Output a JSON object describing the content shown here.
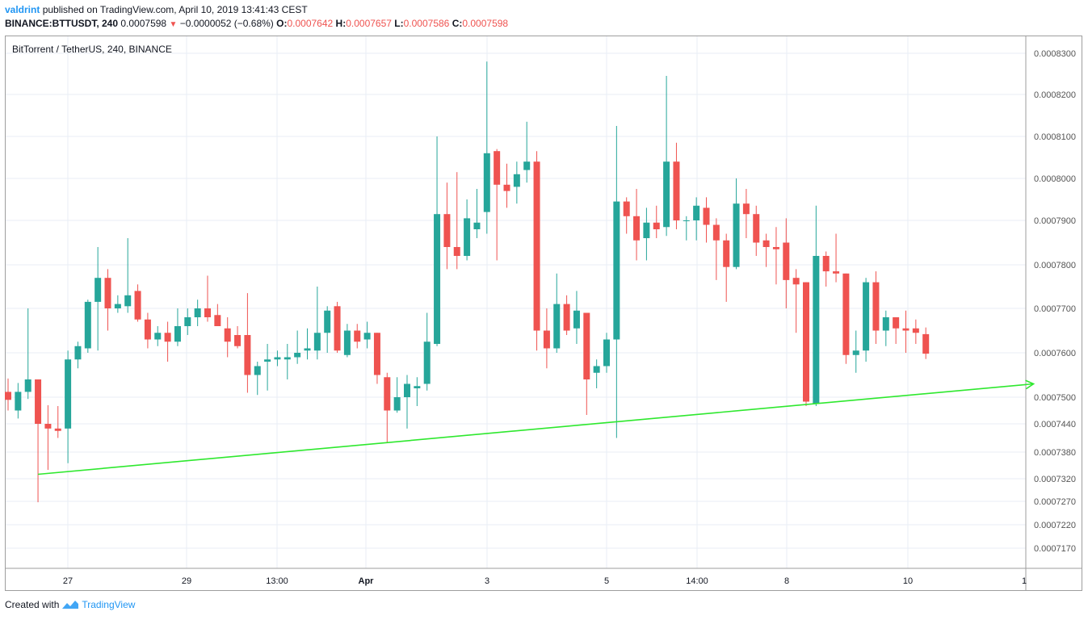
{
  "header": {
    "author": "valdrint",
    "published_text": "published on TradingView.com, April 10, 2019 13:41:43 CEST",
    "symbol_interval": "BINANCE:BTTUSDT, 240",
    "last_price": "0.0007598",
    "change": "−0.0000052 (−0.68%)",
    "o_label": "O:",
    "o_value": "0.0007642",
    "h_label": "H:",
    "h_value": "0.0007657",
    "l_label": "L:",
    "l_value": "0.0007586",
    "c_label": "C:",
    "c_value": "0.0007598"
  },
  "footer": {
    "created_with": "Created with",
    "brand": "TradingView"
  },
  "colors": {
    "up": "#26a69a",
    "down": "#ef5350",
    "trendline": "#2ee82e",
    "grid": "#e8eef5",
    "axis_text": "#555555"
  },
  "chart_data": {
    "type": "candlestick",
    "title": "BitTorrent / TetherUS, 240, BINANCE",
    "y_ticks": [
      "0.0008300",
      "0.0008200",
      "0.0008100",
      "0.0008000",
      "0.0007900",
      "0.0007800",
      "0.0007700",
      "0.0007600",
      "0.0007500",
      "0.0007440",
      "0.0007380",
      "0.0007320",
      "0.0007270",
      "0.0007220",
      "0.0007170"
    ],
    "x_ticks": [
      "27",
      "29",
      "13:00",
      "Apr",
      "3",
      "5",
      "14:00",
      "8",
      "10",
      "1"
    ],
    "x_ticks_bold": [
      "Apr"
    ],
    "grid": true,
    "candles": [
      {
        "o": 0.0007512,
        "h": 0.0007542,
        "l": 0.000747,
        "c": 0.0007494
      },
      {
        "o": 0.000747,
        "h": 0.0007532,
        "l": 0.0007452,
        "c": 0.0007512
      },
      {
        "o": 0.0007512,
        "h": 0.00077,
        "l": 0.0007496,
        "c": 0.000754
      },
      {
        "o": 0.000754,
        "h": 0.000754,
        "l": 0.0007268,
        "c": 0.000744
      },
      {
        "o": 0.000744,
        "h": 0.0007482,
        "l": 0.000734,
        "c": 0.000743
      },
      {
        "o": 0.000743,
        "h": 0.000748,
        "l": 0.000741,
        "c": 0.0007425
      },
      {
        "o": 0.000743,
        "h": 0.0007605,
        "l": 0.0007355,
        "c": 0.0007585
      },
      {
        "o": 0.0007585,
        "h": 0.0007625,
        "l": 0.0007565,
        "c": 0.0007615
      },
      {
        "o": 0.000761,
        "h": 0.000772,
        "l": 0.00076,
        "c": 0.0007715
      },
      {
        "o": 0.0007715,
        "h": 0.000784,
        "l": 0.0007605,
        "c": 0.000777
      },
      {
        "o": 0.000777,
        "h": 0.000779,
        "l": 0.000765,
        "c": 0.00077
      },
      {
        "o": 0.00077,
        "h": 0.000773,
        "l": 0.000769,
        "c": 0.000771
      },
      {
        "o": 0.0007705,
        "h": 0.000786,
        "l": 0.000769,
        "c": 0.000773
      },
      {
        "o": 0.000774,
        "h": 0.0007755,
        "l": 0.000767,
        "c": 0.0007675
      },
      {
        "o": 0.0007675,
        "h": 0.000769,
        "l": 0.000761,
        "c": 0.000763
      },
      {
        "o": 0.000763,
        "h": 0.000766,
        "l": 0.0007615,
        "c": 0.0007645
      },
      {
        "o": 0.0007645,
        "h": 0.000767,
        "l": 0.000758,
        "c": 0.0007625
      },
      {
        "o": 0.0007625,
        "h": 0.00077,
        "l": 0.0007615,
        "c": 0.000766
      },
      {
        "o": 0.000766,
        "h": 0.00077,
        "l": 0.000764,
        "c": 0.000768
      },
      {
        "o": 0.000768,
        "h": 0.000772,
        "l": 0.000766,
        "c": 0.00077
      },
      {
        "o": 0.00077,
        "h": 0.0007775,
        "l": 0.000767,
        "c": 0.000768
      },
      {
        "o": 0.0007685,
        "h": 0.000771,
        "l": 0.000766,
        "c": 0.000766
      },
      {
        "o": 0.0007655,
        "h": 0.000768,
        "l": 0.000759,
        "c": 0.0007625
      },
      {
        "o": 0.000764,
        "h": 0.000766,
        "l": 0.000761,
        "c": 0.0007615
      },
      {
        "o": 0.000764,
        "h": 0.0007735,
        "l": 0.000751,
        "c": 0.000755
      },
      {
        "o": 0.000755,
        "h": 0.000758,
        "l": 0.0007505,
        "c": 0.000757
      },
      {
        "o": 0.000758,
        "h": 0.000762,
        "l": 0.0007515,
        "c": 0.0007585
      },
      {
        "o": 0.0007585,
        "h": 0.0007605,
        "l": 0.000757,
        "c": 0.000759
      },
      {
        "o": 0.0007585,
        "h": 0.000762,
        "l": 0.000754,
        "c": 0.000759
      },
      {
        "o": 0.000759,
        "h": 0.000765,
        "l": 0.0007575,
        "c": 0.00076
      },
      {
        "o": 0.0007605,
        "h": 0.0007655,
        "l": 0.0007585,
        "c": 0.000761
      },
      {
        "o": 0.0007605,
        "h": 0.000775,
        "l": 0.0007585,
        "c": 0.0007645
      },
      {
        "o": 0.0007645,
        "h": 0.0007705,
        "l": 0.00076,
        "c": 0.0007695
      },
      {
        "o": 0.0007705,
        "h": 0.0007715,
        "l": 0.00076,
        "c": 0.0007605
      },
      {
        "o": 0.0007595,
        "h": 0.0007665,
        "l": 0.000759,
        "c": 0.000765
      },
      {
        "o": 0.000765,
        "h": 0.0007665,
        "l": 0.000761,
        "c": 0.0007625
      },
      {
        "o": 0.000763,
        "h": 0.000767,
        "l": 0.000761,
        "c": 0.0007645
      },
      {
        "o": 0.0007645,
        "h": 0.0007645,
        "l": 0.000753,
        "c": 0.000755
      },
      {
        "o": 0.0007545,
        "h": 0.0007555,
        "l": 0.00074,
        "c": 0.000747
      },
      {
        "o": 0.000747,
        "h": 0.0007545,
        "l": 0.0007465,
        "c": 0.00075
      },
      {
        "o": 0.00075,
        "h": 0.000755,
        "l": 0.000743,
        "c": 0.000753
      },
      {
        "o": 0.000752,
        "h": 0.0007545,
        "l": 0.000748,
        "c": 0.0007525
      },
      {
        "o": 0.000753,
        "h": 0.000769,
        "l": 0.0007515,
        "c": 0.0007625
      },
      {
        "o": 0.000762,
        "h": 0.00081,
        "l": 0.0007615,
        "c": 0.0007915
      },
      {
        "o": 0.0007915,
        "h": 0.000799,
        "l": 0.000779,
        "c": 0.000784
      },
      {
        "o": 0.000784,
        "h": 0.0008015,
        "l": 0.000779,
        "c": 0.000782
      },
      {
        "o": 0.000782,
        "h": 0.000795,
        "l": 0.000781,
        "c": 0.0007905
      },
      {
        "o": 0.000788,
        "h": 0.0007975,
        "l": 0.000786,
        "c": 0.0007895
      },
      {
        "o": 0.000792,
        "h": 0.000828,
        "l": 0.000787,
        "c": 0.000806
      },
      {
        "o": 0.0008065,
        "h": 0.000807,
        "l": 0.000781,
        "c": 0.0007985
      },
      {
        "o": 0.0007985,
        "h": 0.0008035,
        "l": 0.000793,
        "c": 0.000797
      },
      {
        "o": 0.000798,
        "h": 0.000804,
        "l": 0.000794,
        "c": 0.000801
      },
      {
        "o": 0.000802,
        "h": 0.0008135,
        "l": 0.000799,
        "c": 0.000804
      },
      {
        "o": 0.000804,
        "h": 0.0008065,
        "l": 0.0007605,
        "c": 0.000765
      },
      {
        "o": 0.000765,
        "h": 0.00077,
        "l": 0.0007565,
        "c": 0.000761
      },
      {
        "o": 0.000761,
        "h": 0.000778,
        "l": 0.00076,
        "c": 0.000771
      },
      {
        "o": 0.000771,
        "h": 0.000773,
        "l": 0.000764,
        "c": 0.000765
      },
      {
        "o": 0.0007655,
        "h": 0.000774,
        "l": 0.000762,
        "c": 0.0007695
      },
      {
        "o": 0.000769,
        "h": 0.000769,
        "l": 0.000746,
        "c": 0.000754
      },
      {
        "o": 0.0007555,
        "h": 0.0007585,
        "l": 0.000752,
        "c": 0.000757
      },
      {
        "o": 0.000757,
        "h": 0.0007645,
        "l": 0.0007555,
        "c": 0.000763
      },
      {
        "o": 0.000763,
        "h": 0.0008125,
        "l": 0.000741,
        "c": 0.0007945
      },
      {
        "o": 0.0007945,
        "h": 0.0007955,
        "l": 0.000787,
        "c": 0.000791
      },
      {
        "o": 0.000791,
        "h": 0.0007975,
        "l": 0.000781,
        "c": 0.0007855
      },
      {
        "o": 0.000786,
        "h": 0.000793,
        "l": 0.000781,
        "c": 0.0007895
      },
      {
        "o": 0.0007895,
        "h": 0.0007935,
        "l": 0.000786,
        "c": 0.000788
      },
      {
        "o": 0.0007885,
        "h": 0.0008245,
        "l": 0.0007865,
        "c": 0.000804
      },
      {
        "o": 0.000804,
        "h": 0.0008085,
        "l": 0.000788,
        "c": 0.00079
      },
      {
        "o": 0.00079,
        "h": 0.000791,
        "l": 0.0007855,
        "c": 0.00079
      },
      {
        "o": 0.00079,
        "h": 0.0007955,
        "l": 0.0007855,
        "c": 0.0007935
      },
      {
        "o": 0.000793,
        "h": 0.0007955,
        "l": 0.000785,
        "c": 0.000789
      },
      {
        "o": 0.000789,
        "h": 0.0007905,
        "l": 0.0007765,
        "c": 0.0007855
      },
      {
        "o": 0.0007855,
        "h": 0.000787,
        "l": 0.0007715,
        "c": 0.0007795
      },
      {
        "o": 0.0007795,
        "h": 0.0008,
        "l": 0.000779,
        "c": 0.000794
      },
      {
        "o": 0.000794,
        "h": 0.0007975,
        "l": 0.000786,
        "c": 0.0007915
      },
      {
        "o": 0.0007915,
        "h": 0.0007935,
        "l": 0.000782,
        "c": 0.000785
      },
      {
        "o": 0.0007855,
        "h": 0.000787,
        "l": 0.0007795,
        "c": 0.000784
      },
      {
        "o": 0.000784,
        "h": 0.0007885,
        "l": 0.0007755,
        "c": 0.0007835
      },
      {
        "o": 0.000785,
        "h": 0.0007905,
        "l": 0.00077,
        "c": 0.0007765
      },
      {
        "o": 0.000777,
        "h": 0.000779,
        "l": 0.0007645,
        "c": 0.0007755
      },
      {
        "o": 0.000776,
        "h": 0.000776,
        "l": 0.000748,
        "c": 0.000749
      },
      {
        "o": 0.0007485,
        "h": 0.0007935,
        "l": 0.000748,
        "c": 0.000782
      },
      {
        "o": 0.000782,
        "h": 0.000783,
        "l": 0.000775,
        "c": 0.0007785
      },
      {
        "o": 0.0007785,
        "h": 0.000787,
        "l": 0.000776,
        "c": 0.000778
      },
      {
        "o": 0.000778,
        "h": 0.000778,
        "l": 0.0007575,
        "c": 0.0007595
      },
      {
        "o": 0.0007595,
        "h": 0.000765,
        "l": 0.0007555,
        "c": 0.0007605
      },
      {
        "o": 0.0007605,
        "h": 0.000777,
        "l": 0.000758,
        "c": 0.000776
      },
      {
        "o": 0.000776,
        "h": 0.0007785,
        "l": 0.000762,
        "c": 0.000765
      },
      {
        "o": 0.000765,
        "h": 0.0007695,
        "l": 0.0007615,
        "c": 0.000768
      },
      {
        "o": 0.000768,
        "h": 0.000768,
        "l": 0.000762,
        "c": 0.0007655
      },
      {
        "o": 0.0007655,
        "h": 0.0007695,
        "l": 0.00076,
        "c": 0.000765
      },
      {
        "o": 0.0007655,
        "h": 0.0007675,
        "l": 0.000762,
        "c": 0.0007645
      },
      {
        "o": 0.0007642,
        "h": 0.0007657,
        "l": 0.0007586,
        "c": 0.0007598
      }
    ],
    "trendline": {
      "from": {
        "candle_index": 3,
        "price": 0.000733
      },
      "to": {
        "candle_index": 102.8,
        "price": 0.000753
      },
      "arrow_end": true
    }
  }
}
